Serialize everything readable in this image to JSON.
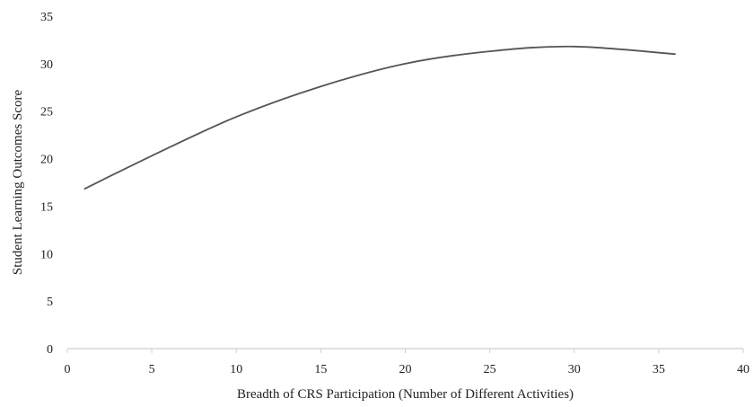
{
  "chart_data": {
    "type": "line",
    "title": "",
    "xlabel": "Breadth of CRS Participation (Number of Different Activities)",
    "ylabel": "Student Learning Outcomes Score",
    "xlim": [
      0,
      40
    ],
    "ylim": [
      0,
      35
    ],
    "x_ticks": [
      0,
      5,
      10,
      15,
      20,
      25,
      30,
      35,
      40
    ],
    "y_ticks": [
      0,
      5,
      10,
      15,
      20,
      25,
      30,
      35
    ],
    "grid": false,
    "legend": "none",
    "series": [
      {
        "x": [
          1,
          5,
          10,
          15,
          20,
          25,
          30,
          36
        ],
        "y": [
          16.8,
          20.3,
          24.4,
          27.6,
          30.0,
          31.3,
          31.8,
          31.0
        ],
        "color": "#555555"
      }
    ]
  }
}
